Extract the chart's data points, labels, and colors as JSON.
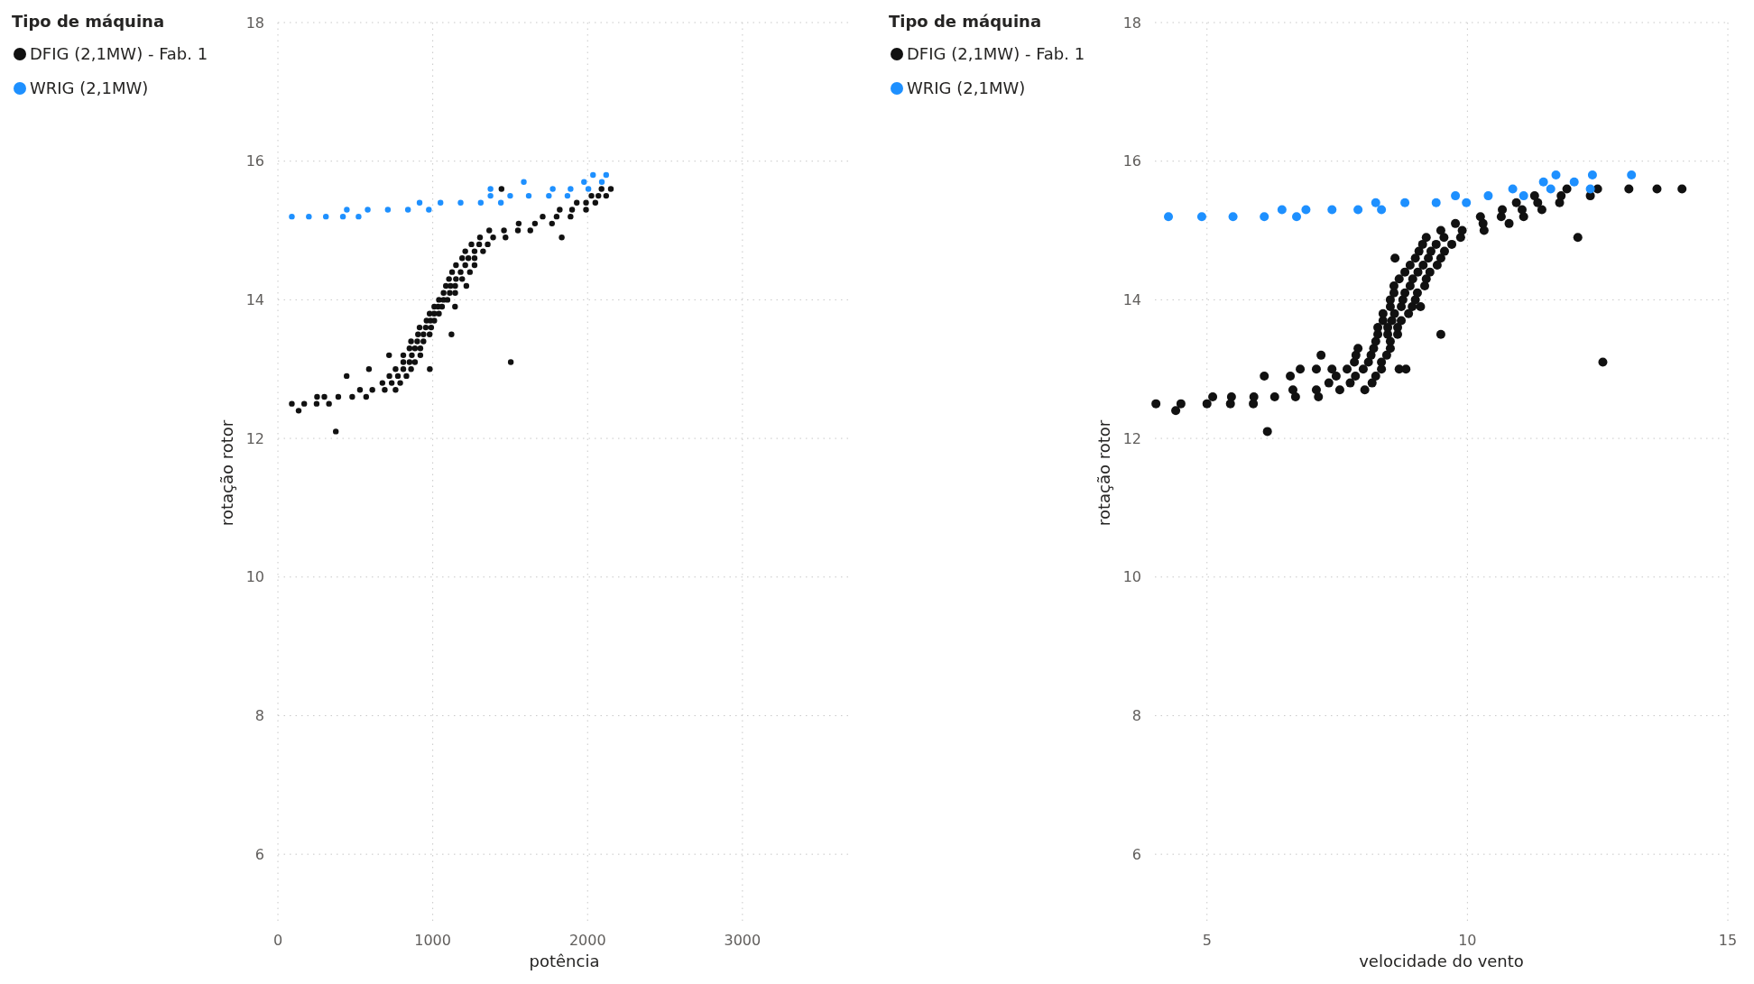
{
  "chart_data": [
    {
      "type": "scatter",
      "xlabel": "potência",
      "ylabel": "rotação rotor",
      "legend_title": "Tipo de máquina",
      "legend": "top left",
      "grid": true,
      "marker": "circle",
      "xlim": [
        0,
        3700
      ],
      "ylim": [
        5,
        18
      ],
      "xticks": [
        0,
        1000,
        2000,
        3000
      ],
      "yticks": [
        6,
        8,
        10,
        12,
        14,
        16,
        18
      ],
      "series": [
        {
          "name": "DFIG (2,1MW) - Fab. 1",
          "color": "#111111",
          "x": [
            90,
            170,
            250,
            330,
            300,
            390,
            480,
            570,
            530,
            610,
            690,
            760,
            675,
            735,
            790,
            720,
            775,
            830,
            760,
            810,
            860,
            810,
            850,
            885,
            810,
            865,
            920,
            850,
            885,
            920,
            860,
            900,
            940,
            905,
            940,
            980,
            915,
            955,
            990,
            960,
            985,
            1010,
            980,
            1010,
            1040,
            1010,
            1035,
            1060,
            1040,
            1070,
            1095,
            1070,
            1110,
            1145,
            1085,
            1115,
            1145,
            1105,
            1150,
            1190,
            1125,
            1180,
            1240,
            1150,
            1210,
            1270,
            1190,
            1230,
            1270,
            1210,
            1270,
            1325,
            1250,
            1300,
            1355,
            1305,
            1390,
            1470,
            1365,
            1460,
            1550,
            1630,
            1555,
            1660,
            1770,
            1710,
            1800,
            1890,
            1820,
            1900,
            1990,
            1930,
            1990,
            2050,
            2025,
            2070,
            2120,
            2090,
            2150,
            134,
            374,
            253,
            444,
            588,
            981,
            718,
            1121,
            1504,
            1833,
            1144,
            1217,
            1444
          ],
          "values": [
            12.5,
            12.5,
            12.5,
            12.5,
            12.6,
            12.6,
            12.6,
            12.6,
            12.7,
            12.7,
            12.7,
            12.7,
            12.8,
            12.8,
            12.8,
            12.9,
            12.9,
            12.9,
            13.0,
            13.0,
            13.0,
            13.1,
            13.1,
            13.1,
            13.2,
            13.2,
            13.2,
            13.3,
            13.3,
            13.3,
            13.4,
            13.4,
            13.4,
            13.5,
            13.5,
            13.5,
            13.6,
            13.6,
            13.6,
            13.7,
            13.7,
            13.7,
            13.8,
            13.8,
            13.8,
            13.9,
            13.9,
            13.9,
            14.0,
            14.0,
            14.0,
            14.1,
            14.1,
            14.1,
            14.2,
            14.2,
            14.2,
            14.3,
            14.3,
            14.3,
            14.4,
            14.4,
            14.4,
            14.5,
            14.5,
            14.5,
            14.6,
            14.6,
            14.6,
            14.7,
            14.7,
            14.7,
            14.8,
            14.8,
            14.8,
            14.9,
            14.9,
            14.9,
            15.0,
            15.0,
            15.0,
            15.0,
            15.1,
            15.1,
            15.1,
            15.2,
            15.2,
            15.2,
            15.3,
            15.3,
            15.3,
            15.4,
            15.4,
            15.4,
            15.5,
            15.5,
            15.5,
            15.6,
            15.6,
            12.4,
            12.1,
            12.6,
            12.9,
            13.0,
            13.0,
            13.2,
            13.5,
            13.1,
            14.9,
            13.9,
            14.2,
            15.6
          ]
        },
        {
          "name": "WRIG (2,1MW)",
          "color": "#1e90ff",
          "x": [
            90,
            200,
            310,
            420,
            521,
            445,
            580,
            710,
            840,
            975,
            915,
            1050,
            1180,
            1310,
            1440,
            1373,
            1500,
            1620,
            1750,
            1870,
            1373,
            1775,
            1890,
            2005,
            1588,
            1977,
            2092,
            2035,
            2120
          ],
          "values": [
            15.2,
            15.2,
            15.2,
            15.2,
            15.2,
            15.3,
            15.3,
            15.3,
            15.3,
            15.3,
            15.4,
            15.4,
            15.4,
            15.4,
            15.4,
            15.5,
            15.5,
            15.5,
            15.5,
            15.5,
            15.6,
            15.6,
            15.6,
            15.6,
            15.7,
            15.7,
            15.7,
            15.8,
            15.8
          ]
        }
      ]
    },
    {
      "type": "scatter",
      "xlabel": "velocidade do vento",
      "ylabel": "rotação rotor",
      "legend_title": "Tipo de máquina",
      "legend": "top left",
      "grid": true,
      "marker": "circle",
      "xlim": [
        4,
        15
      ],
      "ylim": [
        5,
        18
      ],
      "xticks": [
        5,
        10,
        15
      ],
      "yticks": [
        6,
        8,
        10,
        12,
        14,
        16,
        18
      ],
      "series": [
        {
          "name": "DFIG (2,1MW) - Fab. 1",
          "color": "#111111",
          "x": [
            4.02,
            4.5,
            5.0,
            5.45,
            5.89,
            5.47,
            5.9,
            6.3,
            6.7,
            7.14,
            6.65,
            7.1,
            7.55,
            8.03,
            7.34,
            7.75,
            8.17,
            7.48,
            7.85,
            8.24,
            7.69,
            8.0,
            8.35,
            7.83,
            8.1,
            8.35,
            7.86,
            8.15,
            8.45,
            7.9,
            8.2,
            8.52,
            8.24,
            8.52,
            8.28,
            8.47,
            8.66,
            8.28,
            8.47,
            8.66,
            8.38,
            8.55,
            8.73,
            8.38,
            8.6,
            8.87,
            8.52,
            8.73,
            8.94,
            8.52,
            8.76,
            9.0,
            8.59,
            8.8,
            9.04,
            8.59,
            8.9,
            9.18,
            8.69,
            8.95,
            9.21,
            8.8,
            9.05,
            9.28,
            8.9,
            9.15,
            9.42,
            9.0,
            9.25,
            9.49,
            9.07,
            9.3,
            9.56,
            9.14,
            9.4,
            9.7,
            9.21,
            9.55,
            9.87,
            9.49,
            9.9,
            10.32,
            9.77,
            10.3,
            10.8,
            10.25,
            10.65,
            11.08,
            10.67,
            11.05,
            11.43,
            10.94,
            11.35,
            11.77,
            11.29,
            11.8,
            12.36,
            11.91,
            12.5,
            13.1,
            13.64,
            14.12,
            12.12,
            12.6,
            6.16,
            4.4,
            9.49,
            5.11,
            6.79,
            7.1,
            7.4,
            6.1,
            6.6,
            7.19,
            8.69,
            8.82,
            8.61,
            9.1
          ],
          "values": [
            12.5,
            12.5,
            12.5,
            12.5,
            12.5,
            12.6,
            12.6,
            12.6,
            12.6,
            12.6,
            12.7,
            12.7,
            12.7,
            12.7,
            12.8,
            12.8,
            12.8,
            12.9,
            12.9,
            12.9,
            13.0,
            13.0,
            13.0,
            13.1,
            13.1,
            13.1,
            13.2,
            13.2,
            13.2,
            13.3,
            13.3,
            13.3,
            13.4,
            13.4,
            13.5,
            13.5,
            13.5,
            13.6,
            13.6,
            13.6,
            13.7,
            13.7,
            13.7,
            13.8,
            13.8,
            13.8,
            13.9,
            13.9,
            13.9,
            14.0,
            14.0,
            14.0,
            14.1,
            14.1,
            14.1,
            14.2,
            14.2,
            14.2,
            14.3,
            14.3,
            14.3,
            14.4,
            14.4,
            14.4,
            14.5,
            14.5,
            14.5,
            14.6,
            14.6,
            14.6,
            14.7,
            14.7,
            14.7,
            14.8,
            14.8,
            14.8,
            14.9,
            14.9,
            14.9,
            15.0,
            15.0,
            15.0,
            15.1,
            15.1,
            15.1,
            15.2,
            15.2,
            15.2,
            15.3,
            15.3,
            15.3,
            15.4,
            15.4,
            15.4,
            15.5,
            15.5,
            15.5,
            15.6,
            15.6,
            15.6,
            15.6,
            15.6,
            14.9,
            13.1,
            12.1,
            12.4,
            13.5,
            12.6,
            13.0,
            13.0,
            13.0,
            12.9,
            12.9,
            13.2,
            13.0,
            13.0,
            14.6,
            13.9
          ]
        },
        {
          "name": "WRIG (2,1MW)",
          "color": "#1e90ff",
          "x": [
            4.26,
            4.9,
            5.5,
            6.1,
            6.72,
            6.44,
            6.9,
            7.4,
            7.9,
            8.35,
            8.24,
            8.8,
            9.4,
            9.98,
            9.77,
            10.4,
            11.08,
            10.87,
            11.6,
            12.36,
            11.46,
            12.05,
            11.7,
            12.4,
            13.15
          ],
          "values": [
            15.2,
            15.2,
            15.2,
            15.2,
            15.2,
            15.3,
            15.3,
            15.3,
            15.3,
            15.3,
            15.4,
            15.4,
            15.4,
            15.4,
            15.5,
            15.5,
            15.5,
            15.6,
            15.6,
            15.6,
            15.7,
            15.7,
            15.8,
            15.8,
            15.8
          ]
        }
      ]
    }
  ]
}
